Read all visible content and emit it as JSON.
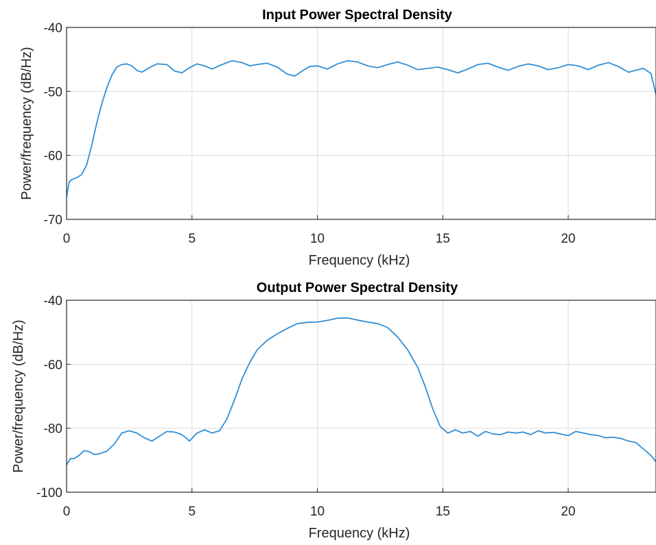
{
  "colors": {
    "series": "#2f8ed6"
  },
  "chart_data": [
    {
      "type": "line",
      "title": "Input Power Spectral Density",
      "xlabel": "Frequency (kHz)",
      "ylabel": "Power/frequency (dB/Hz)",
      "xlim": [
        0,
        23.5
      ],
      "ylim": [
        -70,
        -40
      ],
      "xticks": [
        0,
        5,
        10,
        15,
        20
      ],
      "yticks": [
        -70,
        -60,
        -50,
        -40
      ],
      "xtick_labels": [
        "0",
        "5",
        "10",
        "15",
        "20"
      ],
      "ytick_labels": [
        "-70",
        "-60",
        "-50",
        "-40"
      ],
      "grid": true,
      "series": [
        {
          "x": [
            0,
            0.1,
            0.2,
            0.4,
            0.6,
            0.8,
            1.0,
            1.2,
            1.4,
            1.6,
            1.8,
            2.0,
            2.2,
            2.4,
            2.6,
            2.8,
            3.0,
            3.3,
            3.6,
            4.0,
            4.3,
            4.6,
            4.9,
            5.2,
            5.5,
            5.8,
            6.2,
            6.6,
            7.0,
            7.3,
            7.6,
            8.0,
            8.4,
            8.8,
            9.1,
            9.4,
            9.7,
            10.0,
            10.4,
            10.8,
            11.2,
            11.6,
            12.0,
            12.4,
            12.8,
            13.2,
            13.6,
            14.0,
            14.4,
            14.8,
            15.2,
            15.6,
            16.0,
            16.4,
            16.8,
            17.2,
            17.6,
            18.0,
            18.4,
            18.8,
            19.2,
            19.6,
            20.0,
            20.4,
            20.8,
            21.2,
            21.6,
            22.0,
            22.4,
            22.7,
            23.0,
            23.3,
            23.5
          ],
          "y": [
            -66.5,
            -64.2,
            -63.8,
            -63.5,
            -63.0,
            -61.5,
            -58.5,
            -55,
            -52,
            -49.5,
            -47.5,
            -46.2,
            -45.8,
            -45.7,
            -46.0,
            -46.7,
            -47.0,
            -46.3,
            -45.7,
            -45.8,
            -46.8,
            -47.1,
            -46.3,
            -45.7,
            -46.0,
            -46.5,
            -45.8,
            -45.2,
            -45.5,
            -46.0,
            -45.8,
            -45.6,
            -46.2,
            -47.3,
            -47.6,
            -46.8,
            -46.1,
            -46.0,
            -46.5,
            -45.7,
            -45.2,
            -45.4,
            -46.0,
            -46.3,
            -45.8,
            -45.4,
            -45.9,
            -46.6,
            -46.4,
            -46.2,
            -46.6,
            -47.1,
            -46.5,
            -45.8,
            -45.6,
            -46.2,
            -46.7,
            -46.1,
            -45.7,
            -46.0,
            -46.6,
            -46.3,
            -45.8,
            -46.0,
            -46.6,
            -45.9,
            -45.5,
            -46.1,
            -47.0,
            -46.7,
            -46.4,
            -47.2,
            -50.5
          ]
        }
      ]
    },
    {
      "type": "line",
      "title": "Output Power Spectral Density",
      "xlabel": "Frequency (kHz)",
      "ylabel": "Power/frequency (dB/Hz)",
      "xlim": [
        0,
        23.5
      ],
      "ylim": [
        -100,
        -40
      ],
      "xticks": [
        0,
        5,
        10,
        15,
        20
      ],
      "yticks": [
        -100,
        -80,
        -60,
        -40
      ],
      "xtick_labels": [
        "0",
        "5",
        "10",
        "15",
        "20"
      ],
      "ytick_labels": [
        "-100",
        "-80",
        "-60",
        "-40"
      ],
      "grid": true,
      "series": [
        {
          "x": [
            0,
            0.15,
            0.3,
            0.5,
            0.7,
            0.9,
            1.1,
            1.3,
            1.6,
            1.9,
            2.2,
            2.5,
            2.8,
            3.1,
            3.4,
            3.7,
            4.0,
            4.3,
            4.6,
            4.9,
            5.2,
            5.5,
            5.8,
            6.1,
            6.4,
            6.7,
            7.0,
            7.3,
            7.6,
            8.0,
            8.4,
            8.8,
            9.2,
            9.6,
            10.0,
            10.4,
            10.8,
            11.2,
            11.6,
            12.0,
            12.4,
            12.8,
            13.2,
            13.6,
            14.0,
            14.3,
            14.6,
            14.9,
            15.2,
            15.5,
            15.8,
            16.1,
            16.4,
            16.7,
            17.0,
            17.3,
            17.6,
            17.9,
            18.2,
            18.5,
            18.8,
            19.1,
            19.4,
            19.7,
            20.0,
            20.3,
            20.6,
            20.9,
            21.2,
            21.5,
            21.8,
            22.1,
            22.4,
            22.7,
            23.0,
            23.3,
            23.5
          ],
          "y": [
            -91.5,
            -89.5,
            -89.5,
            -88.5,
            -87.0,
            -87.3,
            -88.2,
            -88.0,
            -87.2,
            -85.0,
            -81.5,
            -80.8,
            -81.5,
            -83.0,
            -84.0,
            -82.5,
            -81.0,
            -81.2,
            -82.0,
            -84.0,
            -81.5,
            -80.5,
            -81.5,
            -80.8,
            -77,
            -71,
            -64.5,
            -59.5,
            -55.5,
            -52.5,
            -50.5,
            -48.8,
            -47.3,
            -46.9,
            -46.8,
            -46.3,
            -45.6,
            -45.5,
            -46.2,
            -46.8,
            -47.3,
            -48.5,
            -51.5,
            -55.5,
            -61,
            -67,
            -74,
            -79.5,
            -81.5,
            -80.5,
            -81.5,
            -81.0,
            -82.5,
            -81.0,
            -81.8,
            -82.0,
            -81.2,
            -81.5,
            -81.2,
            -82.0,
            -80.8,
            -81.5,
            -81.3,
            -81.8,
            -82.3,
            -81.0,
            -81.5,
            -82.0,
            -82.3,
            -83.0,
            -82.8,
            -83.2,
            -84.0,
            -84.5,
            -86.5,
            -88.5,
            -90.5
          ]
        }
      ]
    }
  ]
}
